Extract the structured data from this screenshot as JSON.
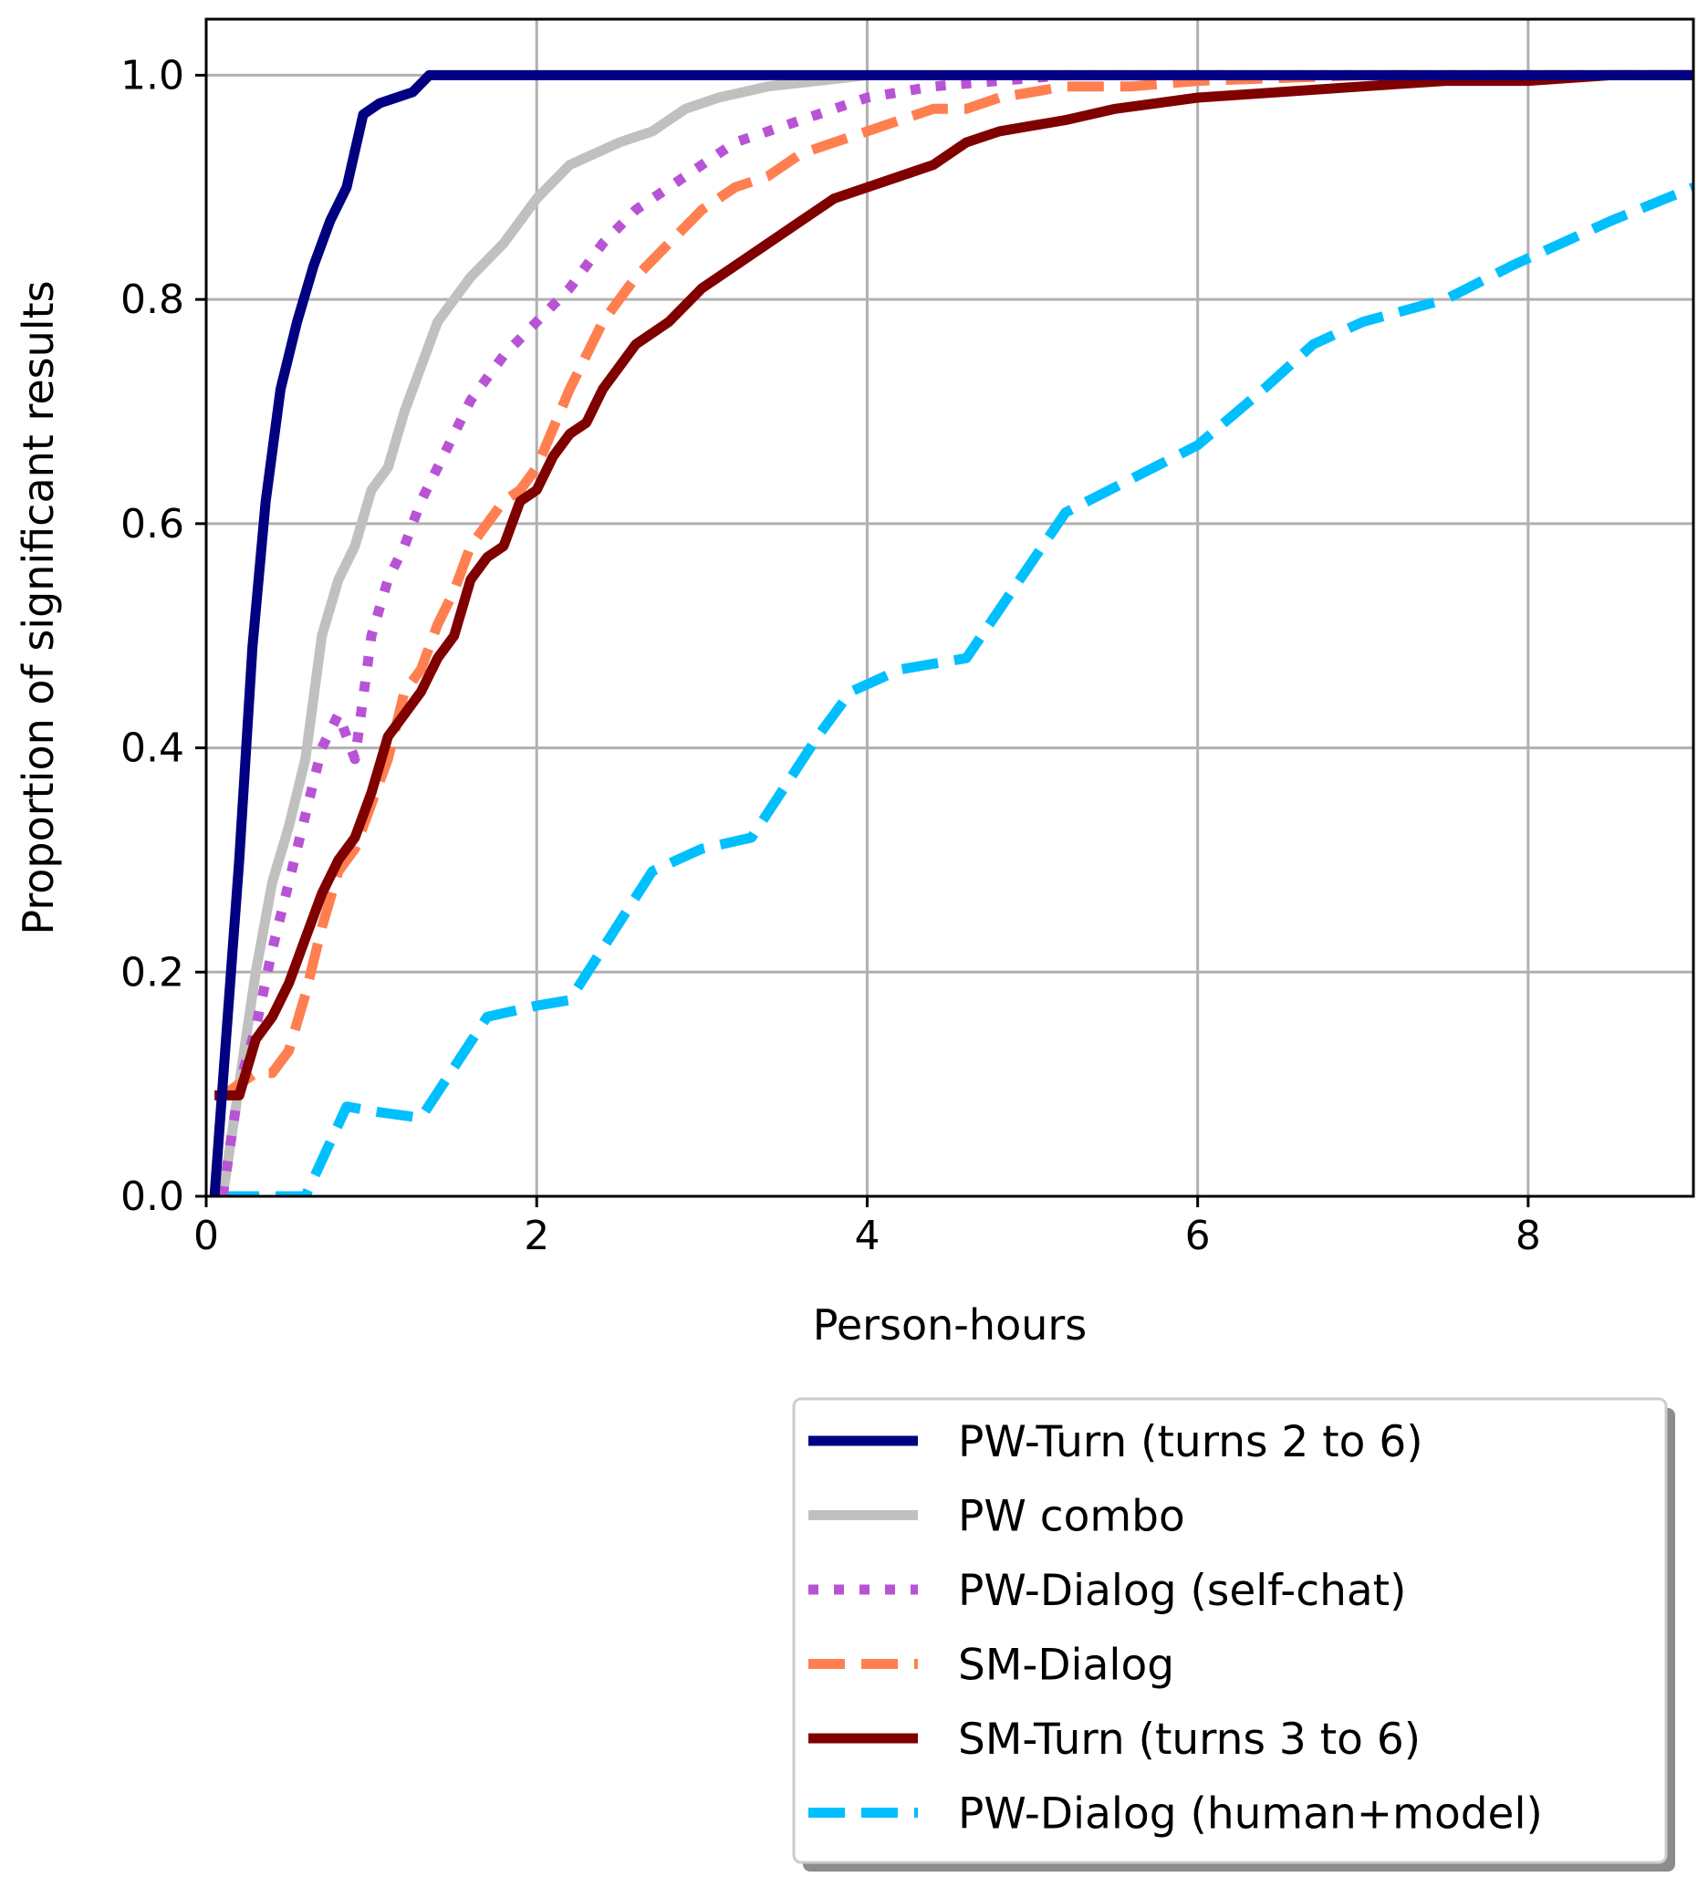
{
  "chart_data": {
    "type": "line",
    "xlabel": "Person-hours",
    "ylabel": "Proportion of significant results",
    "xlim": [
      0,
      9
    ],
    "ylim": [
      0,
      1.05
    ],
    "x_ticks": [
      0,
      2,
      4,
      6,
      8
    ],
    "y_ticks": [
      0.0,
      0.2,
      0.4,
      0.6,
      0.8,
      1.0
    ],
    "x_tick_labels": [
      "0",
      "2",
      "4",
      "6",
      "8"
    ],
    "y_tick_labels": [
      "0.0",
      "0.2",
      "0.4",
      "0.6",
      "0.8",
      "1.0"
    ],
    "grid": true,
    "legend_position": "below-right",
    "series": [
      {
        "name": "PW-Turn (turns 2 to 6)",
        "color": "#000080",
        "dash": "solid",
        "points": [
          [
            0.05,
            0.0
          ],
          [
            0.1,
            0.1
          ],
          [
            0.2,
            0.3
          ],
          [
            0.28,
            0.49
          ],
          [
            0.36,
            0.62
          ],
          [
            0.45,
            0.72
          ],
          [
            0.55,
            0.78
          ],
          [
            0.65,
            0.83
          ],
          [
            0.75,
            0.87
          ],
          [
            0.85,
            0.9
          ],
          [
            0.95,
            0.965
          ],
          [
            1.05,
            0.975
          ],
          [
            1.15,
            0.98
          ],
          [
            1.25,
            0.985
          ],
          [
            1.35,
            1.0
          ],
          [
            1.5,
            1.0
          ],
          [
            1.7,
            1.0
          ],
          [
            2.0,
            1.0
          ],
          [
            4.0,
            1.0
          ],
          [
            9.0,
            1.0
          ]
        ]
      },
      {
        "name": "PW combo",
        "color": "#c0c0c0",
        "dash": "solid",
        "points": [
          [
            0.1,
            0.0
          ],
          [
            0.2,
            0.1
          ],
          [
            0.3,
            0.2
          ],
          [
            0.4,
            0.28
          ],
          [
            0.5,
            0.33
          ],
          [
            0.6,
            0.39
          ],
          [
            0.7,
            0.5
          ],
          [
            0.8,
            0.55
          ],
          [
            0.9,
            0.58
          ],
          [
            1.0,
            0.63
          ],
          [
            1.1,
            0.65
          ],
          [
            1.2,
            0.7
          ],
          [
            1.3,
            0.74
          ],
          [
            1.4,
            0.78
          ],
          [
            1.5,
            0.8
          ],
          [
            1.6,
            0.82
          ],
          [
            1.8,
            0.85
          ],
          [
            2.0,
            0.89
          ],
          [
            2.2,
            0.92
          ],
          [
            2.5,
            0.94
          ],
          [
            2.7,
            0.95
          ],
          [
            2.9,
            0.97
          ],
          [
            3.1,
            0.98
          ],
          [
            3.4,
            0.99
          ],
          [
            3.7,
            0.995
          ],
          [
            4.0,
            1.0
          ],
          [
            9.0,
            1.0
          ]
        ]
      },
      {
        "name": "PW-Dialog (self-chat)",
        "color": "#b853d6",
        "dash": "dotted",
        "points": [
          [
            0.1,
            0.0
          ],
          [
            0.2,
            0.1
          ],
          [
            0.3,
            0.15
          ],
          [
            0.4,
            0.22
          ],
          [
            0.5,
            0.28
          ],
          [
            0.6,
            0.34
          ],
          [
            0.7,
            0.4
          ],
          [
            0.8,
            0.43
          ],
          [
            0.9,
            0.39
          ],
          [
            1.0,
            0.5
          ],
          [
            1.1,
            0.55
          ],
          [
            1.2,
            0.58
          ],
          [
            1.3,
            0.62
          ],
          [
            1.4,
            0.65
          ],
          [
            1.5,
            0.68
          ],
          [
            1.6,
            0.71
          ],
          [
            1.8,
            0.75
          ],
          [
            2.0,
            0.78
          ],
          [
            2.2,
            0.81
          ],
          [
            2.4,
            0.85
          ],
          [
            2.6,
            0.88
          ],
          [
            2.8,
            0.9
          ],
          [
            3.0,
            0.92
          ],
          [
            3.2,
            0.94
          ],
          [
            3.4,
            0.95
          ],
          [
            3.6,
            0.96
          ],
          [
            3.8,
            0.97
          ],
          [
            4.0,
            0.98
          ],
          [
            4.4,
            0.99
          ],
          [
            4.8,
            0.995
          ],
          [
            5.2,
            1.0
          ],
          [
            9.0,
            1.0
          ]
        ]
      },
      {
        "name": "SM-Dialog",
        "color": "#ff7f50",
        "dash": "dashed",
        "points": [
          [
            0.1,
            0.09
          ],
          [
            0.3,
            0.11
          ],
          [
            0.4,
            0.11
          ],
          [
            0.5,
            0.13
          ],
          [
            0.6,
            0.18
          ],
          [
            0.7,
            0.24
          ],
          [
            0.8,
            0.29
          ],
          [
            0.9,
            0.31
          ],
          [
            1.0,
            0.35
          ],
          [
            1.1,
            0.39
          ],
          [
            1.2,
            0.45
          ],
          [
            1.3,
            0.47
          ],
          [
            1.4,
            0.51
          ],
          [
            1.5,
            0.54
          ],
          [
            1.6,
            0.58
          ],
          [
            1.7,
            0.6
          ],
          [
            1.8,
            0.62
          ],
          [
            1.9,
            0.63
          ],
          [
            2.0,
            0.65
          ],
          [
            2.2,
            0.72
          ],
          [
            2.4,
            0.78
          ],
          [
            2.6,
            0.82
          ],
          [
            2.8,
            0.85
          ],
          [
            3.0,
            0.88
          ],
          [
            3.2,
            0.9
          ],
          [
            3.4,
            0.91
          ],
          [
            3.6,
            0.93
          ],
          [
            3.8,
            0.94
          ],
          [
            4.0,
            0.95
          ],
          [
            4.2,
            0.96
          ],
          [
            4.4,
            0.97
          ],
          [
            4.6,
            0.97
          ],
          [
            4.8,
            0.98
          ],
          [
            5.2,
            0.99
          ],
          [
            5.6,
            0.99
          ],
          [
            6.0,
            0.995
          ],
          [
            7.0,
            1.0
          ],
          [
            9.0,
            1.0
          ]
        ]
      },
      {
        "name": "SM-Turn (turns 3 to 6)",
        "color": "#800000",
        "dash": "solid",
        "points": [
          [
            0.05,
            0.09
          ],
          [
            0.2,
            0.09
          ],
          [
            0.3,
            0.14
          ],
          [
            0.4,
            0.16
          ],
          [
            0.5,
            0.19
          ],
          [
            0.6,
            0.23
          ],
          [
            0.7,
            0.27
          ],
          [
            0.8,
            0.3
          ],
          [
            0.9,
            0.32
          ],
          [
            1.0,
            0.36
          ],
          [
            1.1,
            0.41
          ],
          [
            1.2,
            0.43
          ],
          [
            1.3,
            0.45
          ],
          [
            1.4,
            0.48
          ],
          [
            1.5,
            0.5
          ],
          [
            1.6,
            0.55
          ],
          [
            1.7,
            0.57
          ],
          [
            1.8,
            0.58
          ],
          [
            1.9,
            0.62
          ],
          [
            2.0,
            0.63
          ],
          [
            2.1,
            0.66
          ],
          [
            2.2,
            0.68
          ],
          [
            2.3,
            0.69
          ],
          [
            2.4,
            0.72
          ],
          [
            2.5,
            0.74
          ],
          [
            2.6,
            0.76
          ],
          [
            2.8,
            0.78
          ],
          [
            3.0,
            0.81
          ],
          [
            3.2,
            0.83
          ],
          [
            3.4,
            0.85
          ],
          [
            3.6,
            0.87
          ],
          [
            3.8,
            0.89
          ],
          [
            4.0,
            0.9
          ],
          [
            4.2,
            0.91
          ],
          [
            4.4,
            0.92
          ],
          [
            4.6,
            0.94
          ],
          [
            4.8,
            0.95
          ],
          [
            5.0,
            0.955
          ],
          [
            5.2,
            0.96
          ],
          [
            5.5,
            0.97
          ],
          [
            6.0,
            0.98
          ],
          [
            6.5,
            0.985
          ],
          [
            7.0,
            0.99
          ],
          [
            7.5,
            0.995
          ],
          [
            8.0,
            0.995
          ],
          [
            8.5,
            1.0
          ],
          [
            9.0,
            1.0
          ]
        ]
      },
      {
        "name": "PW-Dialog (human+model)",
        "color": "#00bfff",
        "dash": "dashed",
        "points": [
          [
            0.1,
            0.0
          ],
          [
            0.35,
            0.0
          ],
          [
            0.6,
            0.0
          ],
          [
            0.85,
            0.08
          ],
          [
            1.05,
            0.075
          ],
          [
            1.3,
            0.07
          ],
          [
            1.7,
            0.16
          ],
          [
            2.0,
            0.17
          ],
          [
            2.2,
            0.175
          ],
          [
            2.7,
            0.29
          ],
          [
            3.0,
            0.31
          ],
          [
            3.3,
            0.32
          ],
          [
            3.7,
            0.41
          ],
          [
            3.9,
            0.45
          ],
          [
            4.2,
            0.47
          ],
          [
            4.6,
            0.48
          ],
          [
            5.2,
            0.61
          ],
          [
            5.6,
            0.64
          ],
          [
            6.0,
            0.67
          ],
          [
            6.4,
            0.72
          ],
          [
            6.7,
            0.76
          ],
          [
            7.0,
            0.78
          ],
          [
            7.5,
            0.8
          ],
          [
            7.9,
            0.83
          ],
          [
            8.2,
            0.85
          ],
          [
            8.5,
            0.87
          ],
          [
            9.0,
            0.9
          ]
        ]
      }
    ]
  }
}
